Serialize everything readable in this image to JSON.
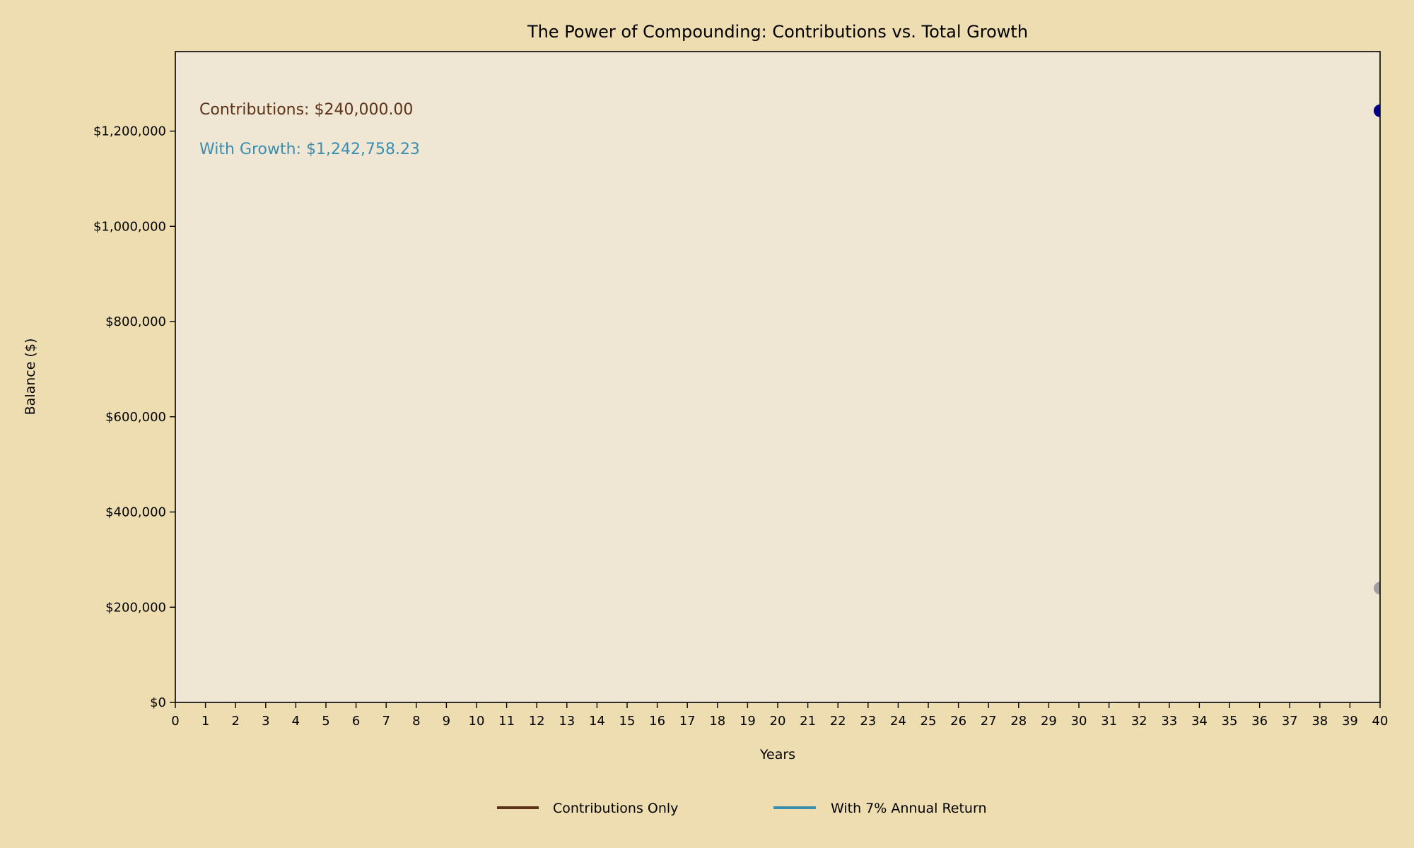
{
  "chart_data": {
    "type": "line",
    "title": "The Power of Compounding: Contributions vs. Total Growth",
    "xlabel": "Years",
    "ylabel": "Balance ($)",
    "xlim": [
      0,
      40
    ],
    "ylim": [
      0,
      1367034
    ],
    "x_ticks": [
      0,
      1,
      2,
      3,
      4,
      5,
      6,
      7,
      8,
      9,
      10,
      11,
      12,
      13,
      14,
      15,
      16,
      17,
      18,
      19,
      20,
      21,
      22,
      23,
      24,
      25,
      26,
      27,
      28,
      29,
      30,
      31,
      32,
      33,
      34,
      35,
      36,
      37,
      38,
      39,
      40
    ],
    "y_ticks": [
      0,
      200000,
      400000,
      600000,
      800000,
      1000000,
      1200000
    ],
    "y_tick_labels": [
      "$0",
      "$200,000",
      "$400,000",
      "$600,000",
      "$800,000",
      "$1,000,000",
      "$1,200,000"
    ],
    "grid": false,
    "series": [
      {
        "name": "Contributions Only",
        "color": "#5C3317",
        "marker_color": "#A0A0A0",
        "points": [
          {
            "x": 40,
            "y": 240000
          }
        ]
      },
      {
        "name": "With 7% Annual Return",
        "color": "#3A8FB0",
        "marker_color": "#00008B",
        "points": [
          {
            "x": 40,
            "y": 1242758.23
          }
        ]
      }
    ],
    "annotations": [
      {
        "text": "Contributions: $240,000.00",
        "color": "#5C3317"
      },
      {
        "text": "With Growth: $1,242,758.23",
        "color": "#3A8FB0"
      }
    ],
    "legend": {
      "placement": "bottom-center",
      "entries": [
        "Contributions Only",
        "With 7% Annual Return"
      ]
    },
    "colors": {
      "figure_bg": "#EEDDB1",
      "axes_bg": "#F0E6D4"
    }
  }
}
